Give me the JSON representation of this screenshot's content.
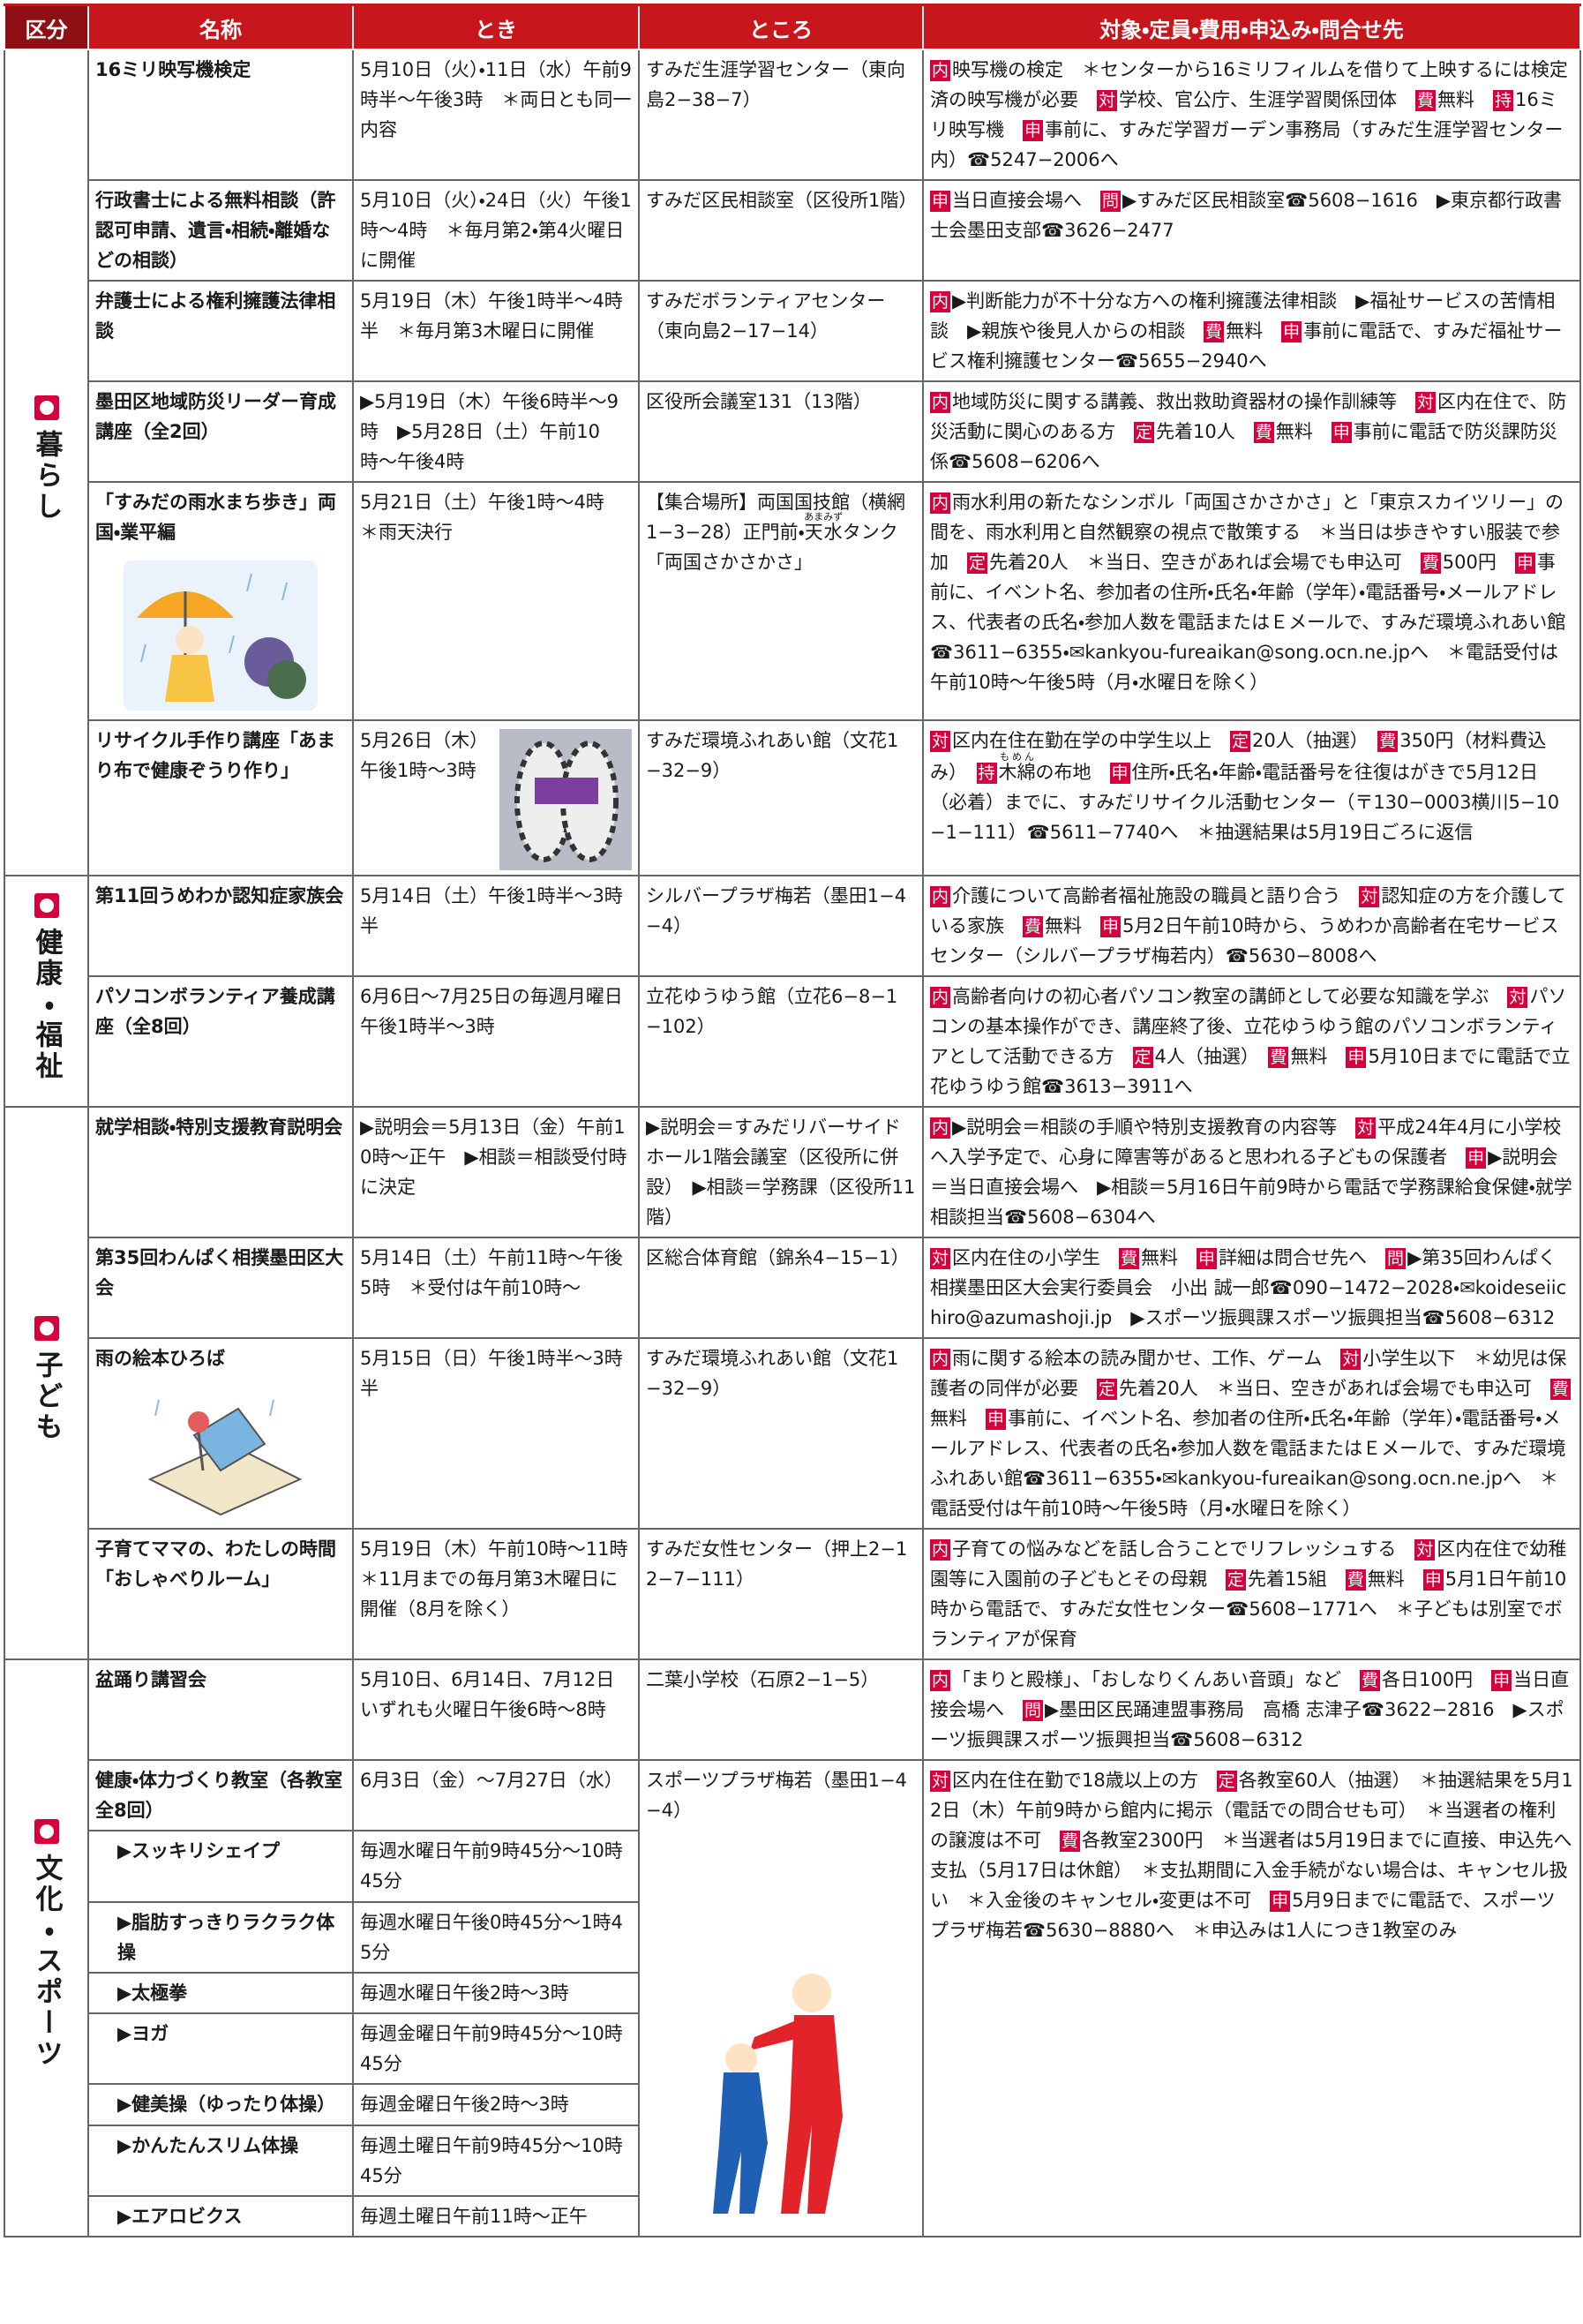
{
  "header": [
    "区分",
    "名称",
    "とき",
    "ところ",
    "対象・定員・費用・申込み・問合せ先"
  ],
  "sections": [
    {
      "category": "暮らし",
      "rows": [
        {
          "name": "16ミリ映写機検定",
          "time": "5月10日（火）・11日（水）午前9時半〜午後3時　＊両日とも同一内容",
          "place": "すみだ生涯学習センター（東向島2−38−7）",
          "details": [
            {
              "badge": "内"
            },
            "映写機の検定　＊センターから16ミリフィルムを借りて上映するには検定済の映写機が必要　",
            {
              "badge": "対"
            },
            "学校、官公庁、生涯学習関係団体　",
            {
              "badge": "費"
            },
            "無料　",
            {
              "badge": "持"
            },
            "16ミリ映写機　",
            {
              "badge": "申"
            },
            "事前に、すみだ学習ガーデン事務局（すみだ生涯学習センター内）☎5247−2006へ"
          ]
        },
        {
          "name": "行政書士による無料相談（許認可申請、遺言・相続・離婚などの相談）",
          "time": "5月10日（火）・24日（火）午後1時〜4時　＊毎月第2・第4火曜日に開催",
          "place": "すみだ区民相談室（区役所1階）",
          "details": [
            {
              "badge": "申"
            },
            "当日直接会場へ　",
            {
              "badge": "問"
            },
            "▶すみだ区民相談室☎5608−1616　▶東京都行政書士会墨田支部☎3626−2477"
          ]
        },
        {
          "name": "弁護士による権利擁護法律相談",
          "time": "5月19日（木）午後1時半〜4時半　＊毎月第3木曜日に開催",
          "place": "すみだボランティアセンター（東向島2−17−14）",
          "details": [
            {
              "badge": "内"
            },
            "▶判断能力が不十分な方への権利擁護法律相談　▶福祉サービスの苦情相談　▶親族や後見人からの相談　",
            {
              "badge": "費"
            },
            "無料　",
            {
              "badge": "申"
            },
            "事前に電話で、すみだ福祉サービス権利擁護センター☎5655−2940へ"
          ]
        },
        {
          "name": "墨田区地域防災リーダー育成講座（全2回）",
          "time": "▶5月19日（木）午後6時半〜9時　▶5月28日（土）午前10時〜午後4時",
          "place": "区役所会議室131（13階）",
          "details": [
            {
              "badge": "内"
            },
            "地域防災に関する講義、救出救助資器材の操作訓練等　",
            {
              "badge": "対"
            },
            "区内在住で、防災活動に関心のある方　",
            {
              "badge": "定"
            },
            "先着10人　",
            {
              "badge": "費"
            },
            "無料　",
            {
              "badge": "申"
            },
            "事前に電話で防災課防災係☎5608−6206へ"
          ]
        },
        {
          "name": "「すみだの雨水まち歩き」両国・業平編",
          "time": "5月21日（土）午後1時〜4時　＊雨天決行",
          "place": [
            "【集合場所】両国国技館（横網1−3−28）正門前・",
            {
              "base": "天水",
              "ruby": "あまみず"
            },
            "タンク「両国さかさかさ」"
          ],
          "details": [
            {
              "badge": "内"
            },
            "雨水利用の新たなシンボル「両国さかさかさ」と「東京スカイツリー」の間を、雨水利用と自然観察の視点で散策する　＊当日は歩きやすい服装で参加　",
            {
              "badge": "定"
            },
            "先着20人　＊当日、空きがあれば会場でも申込可　",
            {
              "badge": "費"
            },
            "500円　",
            {
              "badge": "申"
            },
            "事前に、イベント名、参加者の住所・氏名・年齢（学年）・電話番号・メールアドレス、代表者の氏名・参加人数を電話またはＥメールで、すみだ環境ふれあい館☎3611−6355・✉kankyou-fureaikan@song.ocn.ne.jpへ　＊電話受付は午前10時〜午後5時（月・水曜日を除く）"
          ]
        },
        {
          "name": "リサイクル手作り講座「あまり布で健康ぞうり作り」",
          "time": "5月26日（木）午後1時〜3時",
          "place": "すみだ環境ふれあい館（文花1−32−9）",
          "details": [
            {
              "badge": "対"
            },
            "区内在住在勤在学の中学生以上　",
            {
              "badge": "定"
            },
            "20人（抽選）　",
            {
              "badge": "費"
            },
            "350円（材料費込み）　",
            {
              "badge": "持"
            },
            {
              "base": "木綿",
              "ruby": "もめん"
            },
            "の布地　",
            {
              "badge": "申"
            },
            "住所・氏名・年齢・電話番号を往復はがきで5月12日（必着）までに、すみだリサイクル活動センター（〒130−0003横川5−10−1−111）☎5611−7740へ　＊抽選結果は5月19日ごろに返信"
          ]
        }
      ]
    },
    {
      "category": "健康・福祉",
      "rows": [
        {
          "name": "第11回うめわか認知症家族会",
          "time": "5月14日（土）午後1時半〜3時半",
          "place": "シルバープラザ梅若（墨田1−4−4）",
          "details": [
            {
              "badge": "内"
            },
            "介護について高齢者福祉施設の職員と語り合う　",
            {
              "badge": "対"
            },
            "認知症の方を介護している家族　",
            {
              "badge": "費"
            },
            "無料　",
            {
              "badge": "申"
            },
            "5月2日午前10時から、うめわか高齢者在宅サービスセンター（シルバープラザ梅若内）☎5630−8008へ"
          ]
        },
        {
          "name": "パソコンボランティア養成講座（全8回）",
          "time": "6月6日〜7月25日の毎週月曜日午後1時半〜3時",
          "place": "立花ゆうゆう館（立花6−8−1−102）",
          "details": [
            {
              "badge": "内"
            },
            "高齢者向けの初心者パソコン教室の講師として必要な知識を学ぶ　",
            {
              "badge": "対"
            },
            "パソコンの基本操作ができ、講座終了後、立花ゆうゆう館のパソコンボランティアとして活動できる方　",
            {
              "badge": "定"
            },
            "4人（抽選）　",
            {
              "badge": "費"
            },
            "無料　",
            {
              "badge": "申"
            },
            "5月10日までに電話で立花ゆうゆう館☎3613−3911へ"
          ]
        }
      ]
    },
    {
      "category": "子ども",
      "rows": [
        {
          "name": "就学相談・特別支援教育説明会",
          "time": "▶説明会＝5月13日（金）午前10時〜正午　▶相談＝相談受付時に決定",
          "place": "▶説明会＝すみだリバーサイドホール1階会議室（区役所に併設）　▶相談＝学務課（区役所11階）",
          "details": [
            {
              "badge": "内"
            },
            "▶説明会＝相談の手順や特別支援教育の内容等　",
            {
              "badge": "対"
            },
            "平成24年4月に小学校へ入学予定で、心身に障害等があると思われる子どもの保護者　",
            {
              "badge": "申"
            },
            "▶説明会＝当日直接会場へ　▶相談＝5月16日午前9時から電話で学務課給食保健・就学相談担当☎5608−6304へ"
          ]
        },
        {
          "name": "第35回わんぱく相撲墨田区大会",
          "time": "5月14日（土）午前11時〜午後5時　＊受付は午前10時〜",
          "place": "区総合体育館（錦糸4−15−1）",
          "details": [
            {
              "badge": "対"
            },
            "区内在住の小学生　",
            {
              "badge": "費"
            },
            "無料　",
            {
              "badge": "申"
            },
            "詳細は問合せ先へ　",
            {
              "badge": "問"
            },
            "▶第35回わんぱく相撲墨田区大会実行委員会　小出 誠一郎☎090−1472−2028・✉koideseiichiro@azumashoji.jp　▶スポーツ振興課スポーツ振興担当☎5608−6312"
          ]
        },
        {
          "name": "雨の絵本ひろば",
          "time": "5月15日（日）午後1時半〜3時半",
          "place": "すみだ環境ふれあい館（文花1−32−9）",
          "details": [
            {
              "badge": "内"
            },
            "雨に関する絵本の読み聞かせ、工作、ゲーム　",
            {
              "badge": "対"
            },
            "小学生以下　＊幼児は保護者の同伴が必要　",
            {
              "badge": "定"
            },
            "先着20人　＊当日、空きがあれば会場でも申込可　",
            {
              "badge": "費"
            },
            "無料　",
            {
              "badge": "申"
            },
            "事前に、イベント名、参加者の住所・氏名・年齢（学年）・電話番号・メールアドレス、代表者の氏名・参加人数を電話またはＥメールで、すみだ環境ふれあい館☎3611−6355・✉kankyou-fureaikan@song.ocn.ne.jpへ　＊電話受付は午前10時〜午後5時（月・水曜日を除く）"
          ]
        },
        {
          "name": "子育てママの、わたしの時間「おしゃべりルーム」",
          "time": "5月19日（木）午前10時〜11時　＊11月までの毎月第3木曜日に開催（8月を除く）",
          "place": "すみだ女性センター（押上2−12−7−111）",
          "details": [
            {
              "badge": "内"
            },
            "子育ての悩みなどを話し合うことでリフレッシュする　",
            {
              "badge": "対"
            },
            "区内在住で幼稚園等に入園前の子どもとその母親　",
            {
              "badge": "定"
            },
            "先着15組　",
            {
              "badge": "費"
            },
            "無料　",
            {
              "badge": "申"
            },
            "5月1日午前10時から電話で、すみだ女性センター☎5608−1771へ　＊子どもは別室でボランティアが保育"
          ]
        }
      ]
    },
    {
      "category": "文化・スポーツ",
      "rows": [
        {
          "name": "盆踊り講習会",
          "time": "5月10日、6月14日、7月12日いずれも火曜日午後6時〜8時",
          "place": "二葉小学校（石原2−1−5）",
          "details": [
            {
              "badge": "内"
            },
            "「まりと殿様」、「おしなりくんあい音頭」など　",
            {
              "badge": "費"
            },
            "各日100円　",
            {
              "badge": "申"
            },
            "当日直接会場へ　",
            {
              "badge": "問"
            },
            "▶墨田区民踊連盟事務局　高橋 志津子☎3622−2816　▶スポーツ振興課スポーツ振興担当☎5608−6312"
          ]
        },
        {
          "name": "健康・体力づくり教室（各教室全8回）",
          "time": "6月3日（金）〜7月27日（水）",
          "place": "スポーツプラザ梅若（墨田1−4−4）",
          "details": [
            {
              "badge": "対"
            },
            "区内在住在勤で18歳以上の方　",
            {
              "badge": "定"
            },
            "各教室60人（抽選）　＊抽選結果を5月12日（木）午前9時から館内に掲示（電話での問合せも可）　＊当選者の権利の譲渡は不可　",
            {
              "badge": "費"
            },
            "各教室2300円　＊当選者は5月19日までに直接、申込先へ支払（5月17日は休館）　＊支払期間に入金手続がない場合は、キャンセル扱い　＊入金後のキャンセル・変更は不可　",
            {
              "badge": "申"
            },
            "5月9日までに電話で、スポーツプラザ梅若☎5630−8880へ　＊申込みは1人につき1教室のみ"
          ],
          "classes": [
            {
              "name": "▶スッキリシェイプ",
              "time": "毎週水曜日午前9時45分〜10時45分"
            },
            {
              "name": "▶脂肪すっきりラクラク体操",
              "time": "毎週水曜日午後0時45分〜1時45分"
            },
            {
              "name": "▶太極拳",
              "time": "毎週水曜日午後2時〜3時"
            },
            {
              "name": "▶ヨガ",
              "time": "毎週金曜日午前9時45分〜10時45分"
            },
            {
              "name": "▶健美操（ゆったり体操）",
              "time": "毎週金曜日午後2時〜3時"
            },
            {
              "name": "▶かんたんスリム体操",
              "time": "毎週土曜日午前9時45分〜10時45分"
            },
            {
              "name": "▶エアロビクス",
              "time": "毎週土曜日午前11時〜正午"
            }
          ]
        }
      ]
    }
  ]
}
